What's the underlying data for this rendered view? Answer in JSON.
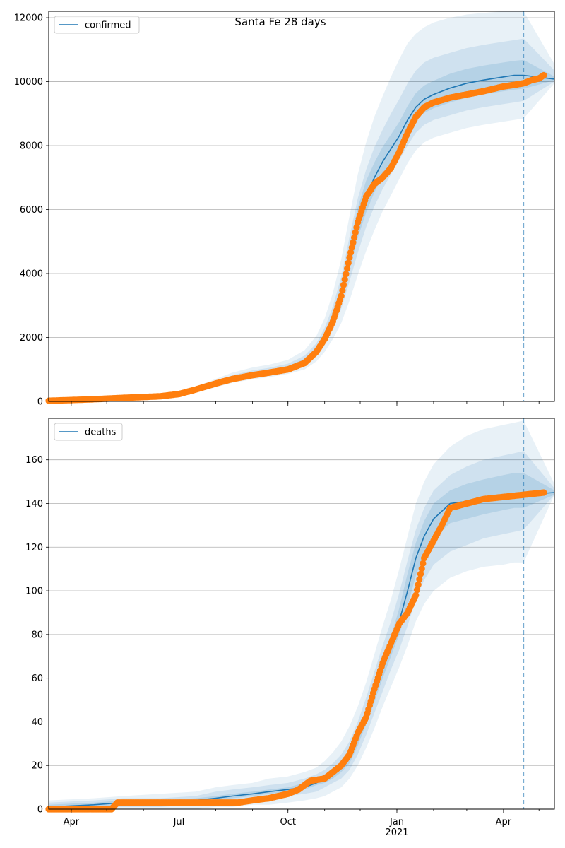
{
  "figure": {
    "title": "Santa Fe 28 days"
  },
  "colors": {
    "model": "#1f77b4",
    "observed": "#ff7f0e",
    "band": "#1f77b4",
    "grid": "#b0b0b0",
    "cutoff": "#1f77b4"
  },
  "x_axis": {
    "start": "2020-03-13",
    "end": "2021-05-14",
    "ticks": [
      {
        "date": "2020-04-01",
        "label": "Apr",
        "sublabel": ""
      },
      {
        "date": "2020-07-01",
        "label": "Jul",
        "sublabel": ""
      },
      {
        "date": "2020-10-01",
        "label": "Oct",
        "sublabel": ""
      },
      {
        "date": "2021-01-01",
        "label": "Jan",
        "sublabel": "2021"
      },
      {
        "date": "2021-04-01",
        "label": "Apr",
        "sublabel": ""
      }
    ]
  },
  "chart_data": [
    {
      "type": "line",
      "legend": "confirmed",
      "legend_position": "top-left",
      "grid": "horizontal",
      "ylim": [
        0,
        12200
      ],
      "yticks": [
        0,
        2000,
        4000,
        6000,
        8000,
        10000,
        12000
      ],
      "cutoff_date": "2021-04-18",
      "model": {
        "x": [
          "2020-03-13",
          "2020-04-15",
          "2020-05-15",
          "2020-06-15",
          "2020-07-01",
          "2020-07-15",
          "2020-08-01",
          "2020-08-15",
          "2020-09-01",
          "2020-09-15",
          "2020-10-01",
          "2020-10-15",
          "2020-10-25",
          "2020-11-01",
          "2020-11-08",
          "2020-11-15",
          "2020-11-22",
          "2020-11-29",
          "2020-12-06",
          "2020-12-13",
          "2020-12-20",
          "2020-12-27",
          "2021-01-03",
          "2021-01-10",
          "2021-01-17",
          "2021-01-24",
          "2021-02-01",
          "2021-02-15",
          "2021-03-01",
          "2021-03-15",
          "2021-04-01",
          "2021-04-10",
          "2021-04-18",
          "2021-05-14"
        ],
        "y": [
          20,
          60,
          110,
          160,
          230,
          350,
          550,
          720,
          850,
          930,
          1050,
          1250,
          1600,
          2000,
          2600,
          3400,
          4500,
          5600,
          6400,
          7000,
          7500,
          7900,
          8300,
          8800,
          9200,
          9450,
          9600,
          9800,
          9950,
          10050,
          10150,
          10200,
          10200,
          10080
        ],
        "bands": [
          {
            "lower": [
              0,
              30,
              70,
              110,
              170,
              270,
              440,
              580,
              690,
              760,
              860,
              1000,
              1250,
              1550,
              1950,
              2450,
              3150,
              3950,
              4700,
              5350,
              5950,
              6450,
              6950,
              7450,
              7850,
              8100,
              8250,
              8400,
              8550,
              8650,
              8750,
              8800,
              8850,
              9950
            ],
            "upper": [
              60,
              110,
              170,
              230,
              310,
              460,
              700,
              900,
              1060,
              1150,
              1300,
              1600,
              2050,
              2600,
              3400,
              4450,
              5800,
              7100,
              8100,
              8900,
              9550,
              10150,
              10700,
              11200,
              11500,
              11700,
              11850,
              12000,
              12100,
              12150,
              12200,
              12200,
              12200,
              10550
            ]
          },
          {
            "lower": [
              10,
              45,
              90,
              135,
              200,
              310,
              490,
              640,
              760,
              840,
              950,
              1120,
              1420,
              1770,
              2270,
              2900,
              3750,
              4650,
              5450,
              6100,
              6650,
              7100,
              7550,
              8000,
              8400,
              8650,
              8800,
              8950,
              9100,
              9200,
              9300,
              9350,
              9400,
              10000
            ],
            "upper": [
              40,
              85,
              140,
              195,
              270,
              410,
              630,
              820,
              970,
              1050,
              1180,
              1430,
              1820,
              2300,
              2980,
              3900,
              5150,
              6350,
              7250,
              7950,
              8500,
              9000,
              9450,
              9950,
              10350,
              10600,
              10750,
              10900,
              11050,
              11150,
              11250,
              11300,
              11350,
              10350
            ]
          },
          {
            "lower": [
              15,
              52,
              100,
              147,
              215,
              330,
              520,
              680,
              805,
              885,
              1000,
              1185,
              1510,
              1885,
              2435,
              3150,
              4120,
              5120,
              5910,
              6540,
              7060,
              7480,
              7900,
              8380,
              8780,
              9020,
              9170,
              9350,
              9500,
              9600,
              9700,
              9750,
              9780,
              10040
            ],
            "upper": [
              28,
              70,
              122,
              175,
              250,
              380,
              590,
              770,
              905,
              985,
              1110,
              1330,
              1700,
              2140,
              2790,
              3670,
              4880,
              6060,
              6900,
              7470,
              7960,
              8350,
              8740,
              9240,
              9640,
              9880,
              10030,
              10250,
              10400,
              10500,
              10600,
              10650,
              10680,
              10160
            ]
          }
        ]
      },
      "observed": {
        "x": [
          "2020-03-13",
          "2020-04-15",
          "2020-05-15",
          "2020-06-15",
          "2020-07-01",
          "2020-07-15",
          "2020-08-01",
          "2020-08-15",
          "2020-09-01",
          "2020-09-15",
          "2020-10-01",
          "2020-10-15",
          "2020-10-25",
          "2020-11-01",
          "2020-11-08",
          "2020-11-15",
          "2020-11-22",
          "2020-11-29",
          "2020-12-06",
          "2020-12-13",
          "2020-12-20",
          "2020-12-27",
          "2021-01-03",
          "2021-01-10",
          "2021-01-17",
          "2021-01-24",
          "2021-02-01",
          "2021-02-15",
          "2021-03-01",
          "2021-03-15",
          "2021-04-01",
          "2021-04-10",
          "2021-04-18",
          "2021-04-25",
          "2021-05-01",
          "2021-05-05"
        ],
        "y": [
          20,
          60,
          110,
          160,
          230,
          370,
          560,
          700,
          820,
          900,
          1000,
          1200,
          1550,
          1950,
          2500,
          3300,
          4500,
          5600,
          6400,
          6800,
          7000,
          7300,
          7800,
          8400,
          8900,
          9200,
          9350,
          9500,
          9600,
          9700,
          9850,
          9900,
          9950,
          10050,
          10100,
          10200
        ]
      }
    },
    {
      "type": "line",
      "legend": "deaths",
      "legend_position": "top-left",
      "grid": "horizontal",
      "ylim": [
        0,
        179
      ],
      "yticks": [
        0,
        20,
        40,
        60,
        80,
        100,
        120,
        140,
        160
      ],
      "cutoff_date": "2021-04-18",
      "model": {
        "x": [
          "2020-03-13",
          "2020-04-20",
          "2020-05-15",
          "2020-06-15",
          "2020-07-15",
          "2020-08-01",
          "2020-08-15",
          "2020-09-01",
          "2020-09-15",
          "2020-10-01",
          "2020-10-15",
          "2020-10-25",
          "2020-11-01",
          "2020-11-08",
          "2020-11-15",
          "2020-11-22",
          "2020-11-29",
          "2020-12-06",
          "2020-12-13",
          "2020-12-20",
          "2020-12-27",
          "2021-01-03",
          "2021-01-10",
          "2021-01-17",
          "2021-01-24",
          "2021-02-01",
          "2021-02-15",
          "2021-03-01",
          "2021-03-15",
          "2021-04-01",
          "2021-04-10",
          "2021-04-18",
          "2021-05-14"
        ],
        "y": [
          1,
          2,
          3,
          3,
          4,
          5,
          6,
          7,
          8,
          9,
          10,
          12,
          14,
          16,
          19,
          24,
          32,
          42,
          53,
          64,
          74,
          86,
          100,
          115,
          125,
          133,
          140,
          141,
          142,
          143,
          144,
          144,
          145
        ],
        "bands": [
          {
            "lower": [
              0,
              0,
              0,
              0,
              0,
              1,
              1,
              2,
              2,
              3,
              4,
              5,
              6,
              8,
              10,
              14,
              20,
              28,
              37,
              47,
              56,
              65,
              75,
              86,
              94,
              100,
              106,
              109,
              111,
              112,
              113,
              113,
              144
            ],
            "upper": [
              4,
              5,
              6,
              7,
              8,
              10,
              11,
              12,
              14,
              15,
              17,
              19,
              22,
              26,
              31,
              38,
              47,
              58,
              71,
              84,
              96,
              110,
              125,
              140,
              150,
              158,
              166,
              171,
              174,
              176,
              177,
              178,
              149
            ]
          },
          {
            "lower": [
              0,
              1,
              1,
              1,
              2,
              3,
              3,
              4,
              5,
              6,
              7,
              8,
              10,
              12,
              14,
              18,
              25,
              34,
              44,
              54,
              64,
              73,
              84,
              96,
              105,
              112,
              118,
              121,
              124,
              126,
              127,
              128,
              144
            ],
            "upper": [
              3,
              4,
              5,
              5,
              6,
              8,
              9,
              10,
              11,
              12,
              14,
              16,
              18,
              21,
              25,
              31,
              40,
              51,
              63,
              75,
              86,
              99,
              114,
              128,
              138,
              146,
              153,
              157,
              160,
              162,
              163,
              164,
              147
            ]
          },
          {
            "lower": [
              0,
              1,
              2,
              2,
              3,
              4,
              5,
              6,
              7,
              8,
              9,
              11,
              12,
              14,
              17,
              21,
              29,
              39,
              49,
              60,
              70,
              80,
              93,
              107,
              117,
              124,
              131,
              133,
              135,
              137,
              138,
              138,
              144
            ],
            "upper": [
              2,
              3,
              4,
              4,
              5,
              6,
              7,
              8,
              9,
              10,
              12,
              14,
              16,
              18,
              22,
              27,
              36,
              46,
              57,
              69,
              79,
              92,
              108,
              122,
              132,
              140,
              146,
              149,
              151,
              153,
              154,
              154,
              146
            ]
          }
        ]
      },
      "observed": {
        "x": [
          "2020-03-13",
          "2020-04-15",
          "2020-05-05",
          "2020-05-10",
          "2020-06-01",
          "2020-07-01",
          "2020-08-01",
          "2020-08-20",
          "2020-09-01",
          "2020-09-15",
          "2020-10-01",
          "2020-10-10",
          "2020-10-20",
          "2020-11-01",
          "2020-11-08",
          "2020-11-15",
          "2020-11-22",
          "2020-11-29",
          "2020-12-06",
          "2020-12-13",
          "2020-12-20",
          "2020-12-27",
          "2021-01-03",
          "2021-01-10",
          "2021-01-17",
          "2021-01-24",
          "2021-02-01",
          "2021-02-08",
          "2021-02-15",
          "2021-03-01",
          "2021-03-15",
          "2021-04-01",
          "2021-04-18",
          "2021-05-05"
        ],
        "y": [
          0,
          0,
          0,
          3,
          3,
          3,
          3,
          3,
          4,
          5,
          7,
          9,
          13,
          14,
          17,
          20,
          25,
          35,
          42,
          55,
          67,
          76,
          85,
          90,
          98,
          115,
          123,
          130,
          138,
          140,
          142,
          143,
          144,
          145
        ]
      }
    }
  ]
}
